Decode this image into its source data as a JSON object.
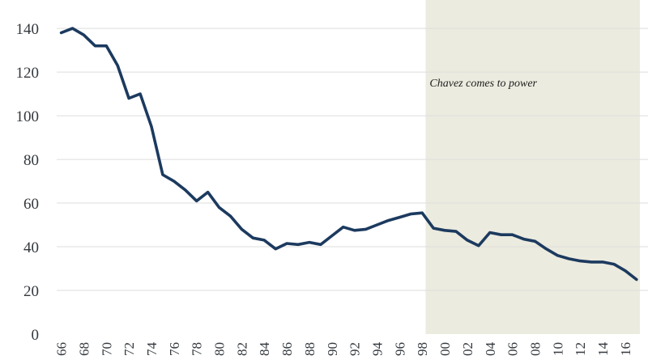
{
  "chart_data": {
    "type": "line",
    "title": "",
    "xlabel": "",
    "ylabel": "",
    "xlim": [
      1965.6,
      2017.3
    ],
    "ylim": [
      0,
      150
    ],
    "grid": true,
    "y_ticks": [
      0,
      20,
      40,
      60,
      80,
      100,
      120,
      140
    ],
    "x_ticks": [
      "66",
      "68",
      "70",
      "72",
      "74",
      "76",
      "78",
      "80",
      "82",
      "84",
      "86",
      "88",
      "90",
      "92",
      "94",
      "96",
      "98",
      "00",
      "02",
      "04",
      "06",
      "08",
      "10",
      "12",
      "14",
      "16"
    ],
    "x_tick_years": [
      1966,
      1968,
      1970,
      1972,
      1974,
      1976,
      1978,
      1980,
      1982,
      1984,
      1986,
      1988,
      1990,
      1992,
      1994,
      1996,
      1998,
      2000,
      2002,
      2004,
      2006,
      2008,
      2010,
      2012,
      2014,
      2016
    ],
    "shaded_region": {
      "x_start": 1998.3,
      "x_end": 2017.3,
      "color": "#ecebdf",
      "label": "Chavez comes to power"
    },
    "series": [
      {
        "name": "",
        "color": "#1c3a5f",
        "x": [
          1966,
          1967,
          1968,
          1969,
          1970,
          1971,
          1972,
          1973,
          1974,
          1975,
          1976,
          1977,
          1978,
          1979,
          1980,
          1981,
          1982,
          1983,
          1984,
          1985,
          1986,
          1987,
          1988,
          1989,
          1990,
          1991,
          1992,
          1993,
          1994,
          1995,
          1996,
          1997,
          1998,
          1999,
          2000,
          2001,
          2002,
          2003,
          2004,
          2005,
          2006,
          2007,
          2008,
          2009,
          2010,
          2011,
          2012,
          2013,
          2014,
          2015,
          2016,
          2017
        ],
        "values": [
          138,
          140,
          137,
          132,
          132,
          123,
          108,
          110,
          95,
          73,
          70,
          66,
          61,
          65,
          58,
          54,
          48,
          44,
          43,
          39,
          41.5,
          41,
          42,
          41,
          45,
          49,
          47.5,
          48,
          50,
          52,
          53.5,
          55,
          55.5,
          48.5,
          47.5,
          47,
          43,
          40.5,
          46.5,
          45.5,
          45.5,
          43.5,
          42.5,
          39,
          36,
          34.5,
          33.5,
          33,
          33,
          32,
          29,
          25
        ]
      }
    ]
  }
}
